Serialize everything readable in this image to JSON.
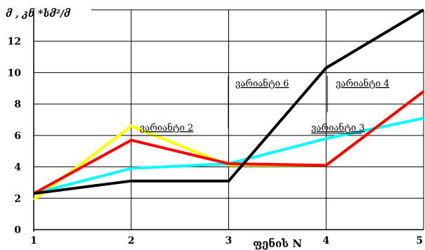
{
  "chart_data": {
    "type": "line",
    "ylabel": "მ , კნ *სმ²/მ",
    "xlabel": "ფენის N",
    "x": [
      1,
      2,
      3,
      4,
      5
    ],
    "xlim": [
      1,
      5
    ],
    "ylim": [
      0,
      14
    ],
    "yticks": [
      0,
      2,
      4,
      6,
      8,
      10,
      12
    ],
    "grid": true,
    "series": [
      {
        "name": "ვარიანტი 2",
        "color": "#ffff00",
        "values": [
          1.9,
          6.6,
          4.1,
          4.1,
          8.8
        ]
      },
      {
        "name": "ვარიანტი 3",
        "color": "#00ffff",
        "values": [
          2.3,
          3.9,
          4.2,
          5.8,
          7.1
        ]
      },
      {
        "name": "ვარიანტი 4",
        "color": "#ff0000",
        "values": [
          2.3,
          5.7,
          4.2,
          4.1,
          8.8
        ]
      },
      {
        "name": "ვარიანტი 6",
        "color": "#000000",
        "values": [
          2.3,
          3.1,
          3.1,
          10.3,
          14.0
        ]
      }
    ],
    "annotations": [
      "ვარიანტი 2",
      "ვარიანტი 6",
      "ვარიანტი 4",
      "ვარიანტი 3"
    ]
  }
}
